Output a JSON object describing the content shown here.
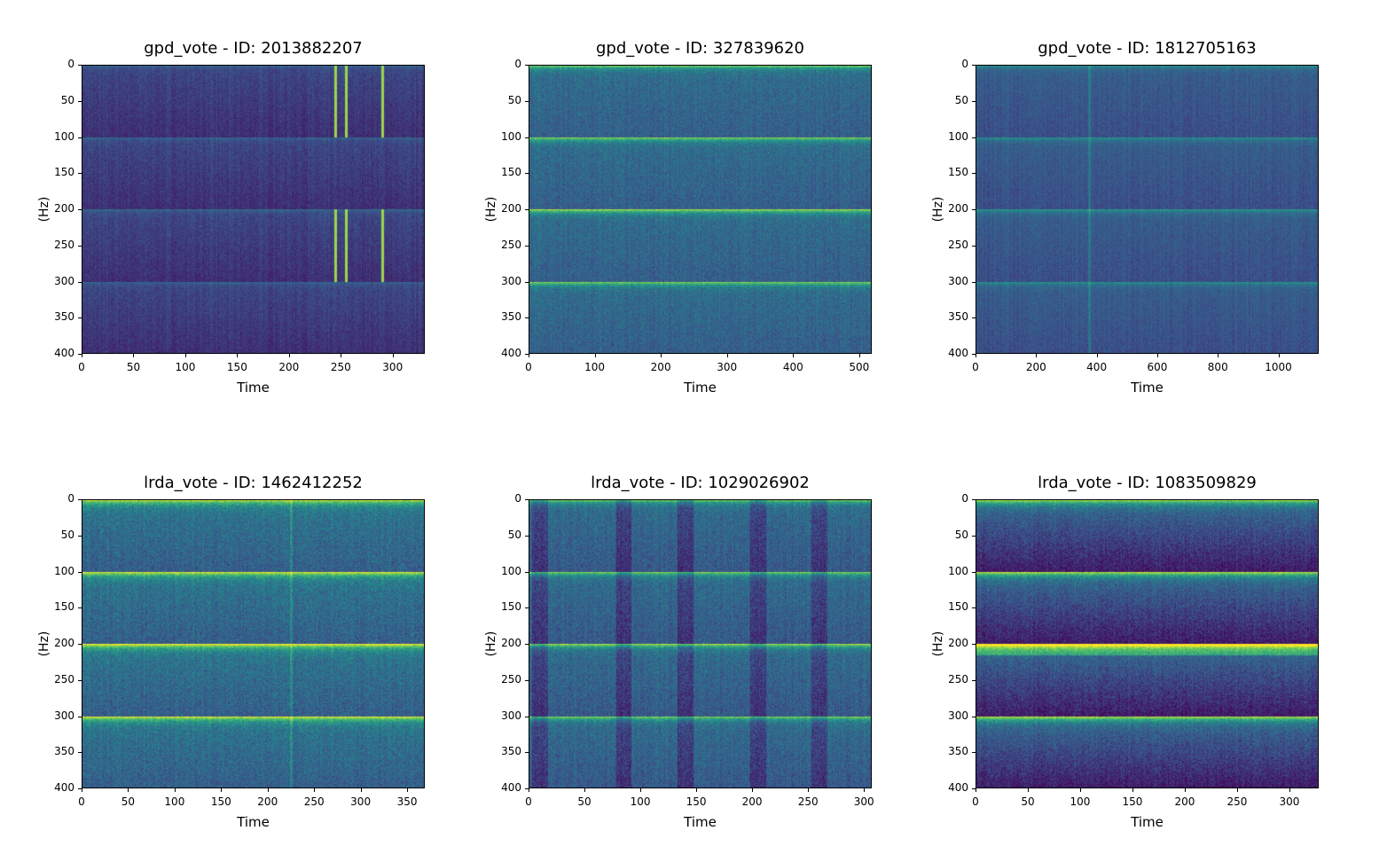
{
  "colormap": "viridis",
  "chart_data": [
    {
      "type": "heatmap",
      "title": "gpd_vote - ID: 2013882207",
      "xlabel": "Time",
      "ylabel": "(Hz)",
      "xlim": [
        0,
        331
      ],
      "ylim": [
        400,
        0
      ],
      "xticks": [
        0,
        50,
        100,
        150,
        200,
        250,
        300
      ],
      "yticks": [
        0,
        50,
        100,
        150,
        200,
        250,
        300,
        350,
        400
      ],
      "horizontal_bands_hz": [
        0,
        100,
        200,
        300
      ],
      "bright_vertical_lines_time": [
        245,
        255,
        290
      ],
      "overall_level": "low"
    },
    {
      "type": "heatmap",
      "title": "gpd_vote - ID: 327839620",
      "xlabel": "Time",
      "ylabel": "(Hz)",
      "xlim": [
        0,
        519
      ],
      "ylim": [
        400,
        0
      ],
      "xticks": [
        0,
        100,
        200,
        300,
        400,
        500
      ],
      "yticks": [
        0,
        50,
        100,
        150,
        200,
        250,
        300,
        350,
        400
      ],
      "horizontal_bands_hz": [
        0,
        100,
        200,
        300
      ],
      "bright_vertical_lines_time": [],
      "overall_level": "medium"
    },
    {
      "type": "heatmap",
      "title": "gpd_vote - ID: 1812705163",
      "xlabel": "Time",
      "ylabel": "(Hz)",
      "xlim": [
        0,
        1133
      ],
      "ylim": [
        400,
        0
      ],
      "xticks": [
        0,
        200,
        400,
        600,
        800,
        1000
      ],
      "yticks": [
        0,
        50,
        100,
        150,
        200,
        250,
        300,
        350,
        400
      ],
      "horizontal_bands_hz": [
        0,
        100,
        200,
        300
      ],
      "bright_vertical_lines_time": [
        375
      ],
      "overall_level": "low-medium"
    },
    {
      "type": "heatmap",
      "title": "lrda_vote - ID: 1462412252",
      "xlabel": "Time",
      "ylabel": "(Hz)",
      "xlim": [
        0,
        369
      ],
      "ylim": [
        400,
        0
      ],
      "xticks": [
        0,
        50,
        100,
        150,
        200,
        250,
        300,
        350
      ],
      "yticks": [
        0,
        50,
        100,
        150,
        200,
        250,
        300,
        350,
        400
      ],
      "horizontal_bands_hz": [
        0,
        100,
        200,
        300
      ],
      "bright_vertical_lines_time": [
        225
      ],
      "overall_level": "medium-high"
    },
    {
      "type": "heatmap",
      "title": "lrda_vote - ID: 1029026902",
      "xlabel": "Time",
      "ylabel": "(Hz)",
      "xlim": [
        0,
        307
      ],
      "ylim": [
        400,
        0
      ],
      "xticks": [
        0,
        50,
        100,
        150,
        200,
        250,
        300
      ],
      "yticks": [
        0,
        50,
        100,
        150,
        200,
        250,
        300,
        350,
        400
      ],
      "horizontal_bands_hz": [
        0,
        100,
        200,
        300
      ],
      "bright_vertical_lines_time": [],
      "dark_vertical_bands_time": [
        10,
        85,
        140,
        205,
        260
      ],
      "overall_level": "medium"
    },
    {
      "type": "heatmap",
      "title": "lrda_vote - ID: 1083509829",
      "xlabel": "Time",
      "ylabel": "(Hz)",
      "xlim": [
        0,
        328
      ],
      "ylim": [
        400,
        0
      ],
      "xticks": [
        0,
        50,
        100,
        150,
        200,
        250,
        300
      ],
      "yticks": [
        0,
        50,
        100,
        150,
        200,
        250,
        300,
        350,
        400
      ],
      "horizontal_bands_hz": [
        0,
        100,
        200,
        300
      ],
      "bright_vertical_lines_time": [],
      "overall_level": "medium"
    }
  ]
}
